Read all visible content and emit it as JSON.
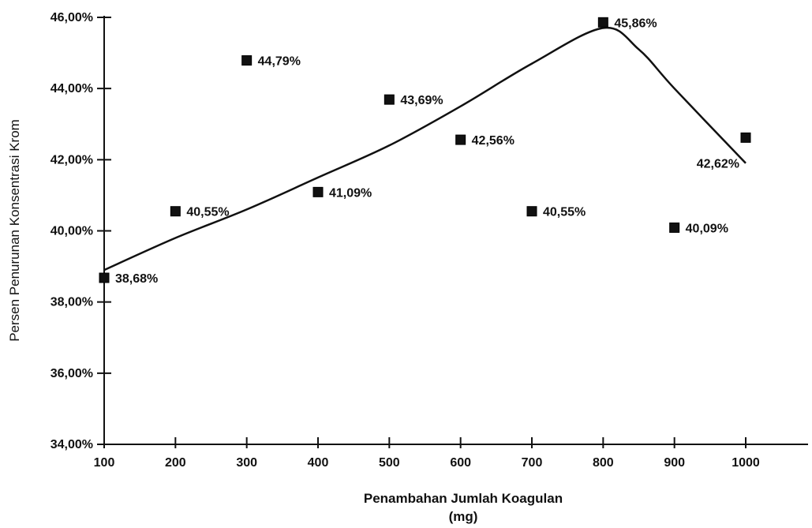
{
  "chart_data": {
    "type": "scatter",
    "title": "",
    "xlabel": "Penambahan Jumlah Koagulan",
    "xlabel_unit": "(mg)",
    "ylabel": "Persen Penurunan Konsentrasi Krom",
    "xlim": [
      100,
      1000
    ],
    "ylim": [
      34,
      46
    ],
    "x_ticks": [
      "100",
      "200",
      "300",
      "400",
      "500",
      "600",
      "700",
      "800",
      "900",
      "1000"
    ],
    "y_ticks": [
      "34,00%",
      "36,00%",
      "38,00%",
      "40,00%",
      "42,00%",
      "44,00%",
      "46,00%"
    ],
    "grid": false,
    "legend": "none",
    "marker_color": "#111111",
    "series": [
      {
        "points": [
          {
            "x": 100,
            "y": 38.68,
            "label": "38,68%"
          },
          {
            "x": 200,
            "y": 40.55,
            "label": "40,55%"
          },
          {
            "x": 300,
            "y": 44.79,
            "label": "44,79%"
          },
          {
            "x": 400,
            "y": 41.09,
            "label": "41,09%"
          },
          {
            "x": 500,
            "y": 43.69,
            "label": "43,69%"
          },
          {
            "x": 600,
            "y": 42.56,
            "label": "42,56%"
          },
          {
            "x": 700,
            "y": 40.55,
            "label": "40,55%"
          },
          {
            "x": 800,
            "y": 45.86,
            "label": "45,86%"
          },
          {
            "x": 900,
            "y": 40.09,
            "label": "40,09%"
          },
          {
            "x": 1000,
            "y": 42.62,
            "label": "42,62%"
          }
        ]
      }
    ],
    "trend_line": {
      "points": [
        [
          100,
          38.9
        ],
        [
          200,
          39.8
        ],
        [
          300,
          40.6
        ],
        [
          400,
          41.5
        ],
        [
          500,
          42.4
        ],
        [
          600,
          43.5
        ],
        [
          700,
          44.7
        ],
        [
          800,
          45.7
        ],
        [
          850,
          45.1
        ],
        [
          900,
          44.0
        ],
        [
          1000,
          41.9
        ]
      ]
    }
  }
}
